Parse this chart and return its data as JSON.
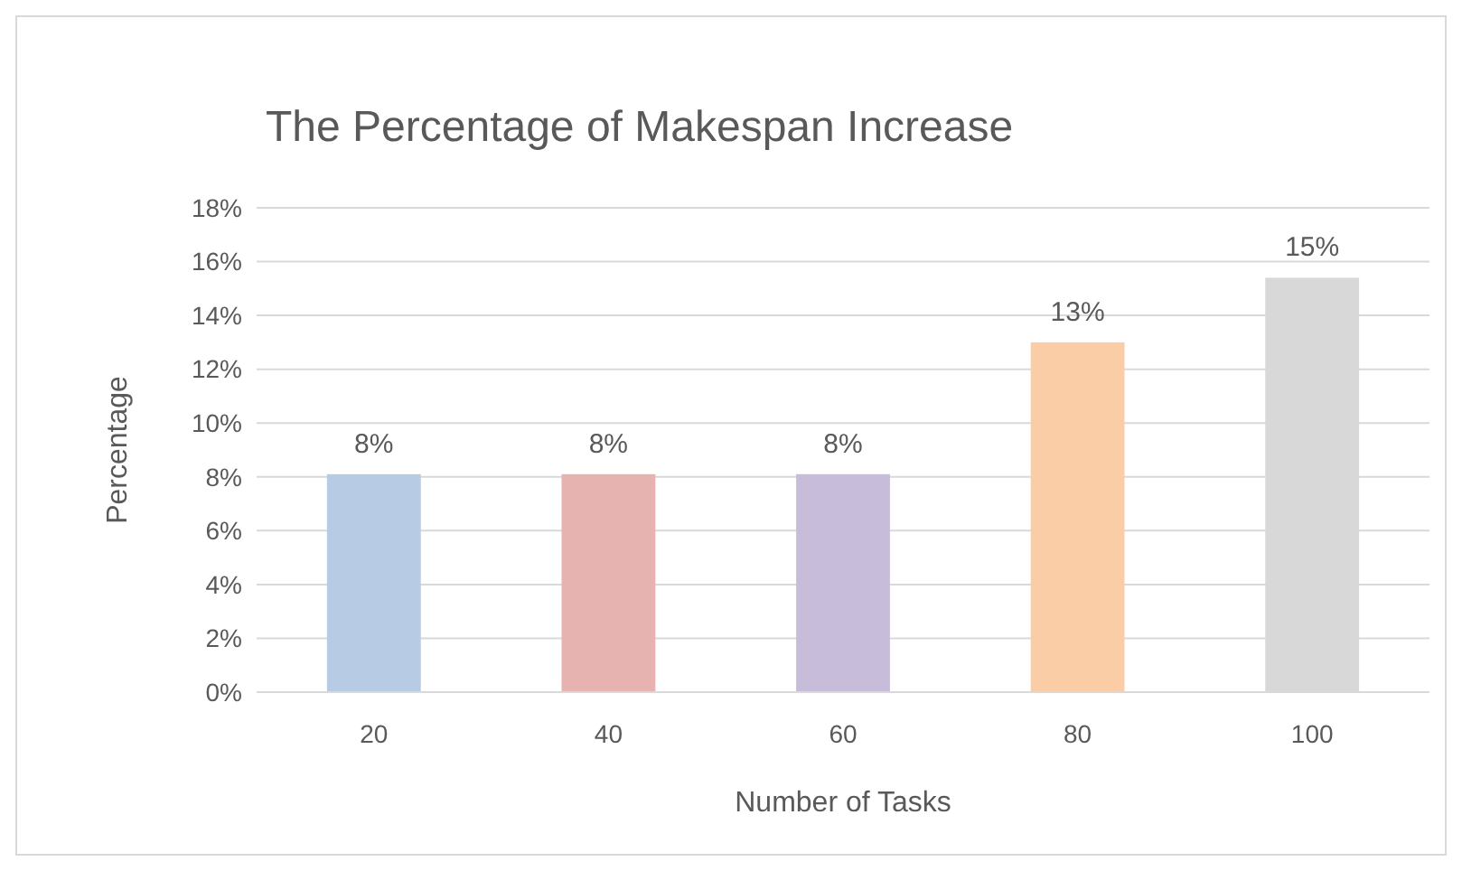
{
  "chart_data": {
    "type": "bar",
    "title": "The Percentage of Makespan Increase",
    "xlabel": "Number of Tasks",
    "ylabel": "Percentage",
    "categories": [
      "20",
      "40",
      "60",
      "80",
      "100"
    ],
    "values": [
      8.1,
      8.1,
      8.1,
      13,
      15.4
    ],
    "colors": [
      "#b7cbe4",
      "#e6b3b1",
      "#c8bcdb",
      "#fbcda7",
      "#d8d8d8"
    ],
    "value_labels": [
      "8%",
      "8%",
      "8%",
      "13%",
      "15%"
    ],
    "ylim": [
      0,
      18
    ],
    "yticks": [
      {
        "value": 0,
        "label": "0%"
      },
      {
        "value": 2,
        "label": "2%"
      },
      {
        "value": 4,
        "label": "4%"
      },
      {
        "value": 6,
        "label": "6%"
      },
      {
        "value": 8,
        "label": "8%"
      },
      {
        "value": 10,
        "label": "10%"
      },
      {
        "value": 12,
        "label": "12%"
      },
      {
        "value": 14,
        "label": "14%"
      },
      {
        "value": 16,
        "label": "16%"
      },
      {
        "value": 18,
        "label": "18%"
      }
    ],
    "grid": "y"
  }
}
